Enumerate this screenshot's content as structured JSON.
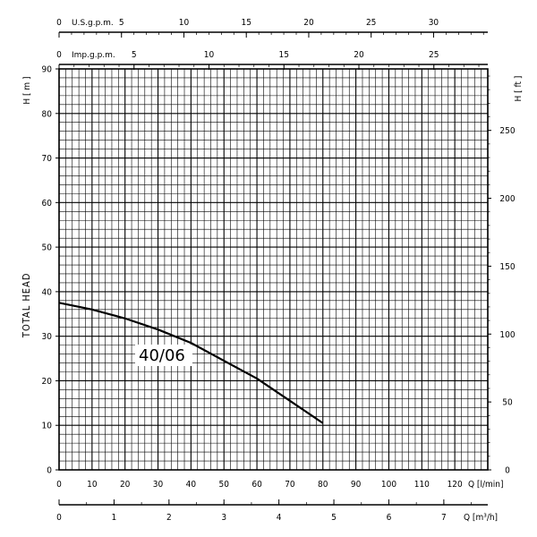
{
  "chart_data": {
    "type": "line",
    "title": "",
    "curve_label": "40/06",
    "ylabel_left": "TOTAL  HEAD",
    "ylabel_left_unit": "H  [ m ]",
    "ylabel_right_unit": "H  [ ft ]",
    "xlabel_lmin": "Q [l/min]",
    "xlabel_m3h": "Q [m³/h]",
    "top_axis_usgpm_label": "U.S.g.p.m.",
    "top_axis_impgpm_label": "Imp.g.p.m.",
    "xlim": [
      0,
      130
    ],
    "ylim": [
      0,
      90
    ],
    "y_ticks": [
      0,
      10,
      20,
      30,
      40,
      50,
      60,
      70,
      80,
      90
    ],
    "x_ticks_lmin": [
      0,
      10,
      20,
      30,
      40,
      50,
      60,
      70,
      80,
      90,
      100,
      110,
      120
    ],
    "x_ticks_m3h": [
      0,
      1,
      2,
      3,
      4,
      5,
      6,
      7
    ],
    "ft_ticks": [
      0,
      50,
      100,
      150,
      200,
      250
    ],
    "usgpm_ticks": [
      0,
      5,
      10,
      15,
      20,
      25,
      30
    ],
    "impgpm_ticks": [
      0,
      5,
      10,
      15,
      20,
      25
    ],
    "grid": true,
    "series": [
      {
        "values_x_lmin": [
          0,
          10,
          20,
          30,
          40,
          50,
          60,
          70,
          80
        ],
        "values_y_m": [
          37.5,
          36,
          34,
          31.5,
          28.5,
          24.5,
          20.5,
          15.5,
          10.5
        ]
      }
    ]
  }
}
